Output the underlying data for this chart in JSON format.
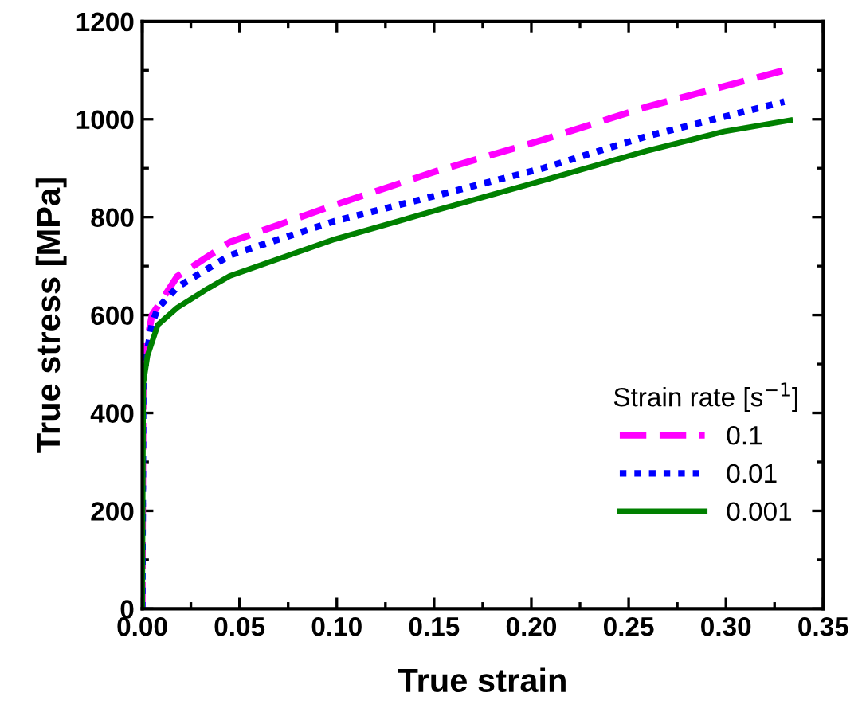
{
  "chart_data": {
    "type": "line",
    "xlabel": "True strain",
    "ylabel": "True stress [MPa]",
    "legend_title": "Strain rate [s$^{−1}$]",
    "legend": "bottom right",
    "grid": false,
    "xlim": [
      0,
      0.35
    ],
    "ylim": [
      0,
      1200
    ],
    "xticks": [
      {
        "value": 0,
        "label": "0.00"
      },
      {
        "value": 0.05,
        "label": "0.05"
      },
      {
        "value": 0.1,
        "label": "0.10"
      },
      {
        "value": 0.15,
        "label": "0.15"
      },
      {
        "value": 0.2,
        "label": "0.20"
      },
      {
        "value": 0.25,
        "label": "0.25"
      },
      {
        "value": 0.3,
        "label": "0.30"
      },
      {
        "value": 0.35,
        "label": "0.35"
      }
    ],
    "yticks": [
      0,
      200,
      400,
      600,
      800,
      1000,
      1200
    ],
    "series": [
      {
        "name": "0.1",
        "color": "#ff00ff",
        "line_style": "dashed",
        "x": [
          0,
          0.0005,
          0.0027,
          0.005,
          0.018,
          0.045,
          0.099,
          0.152,
          0.206,
          0.259,
          0.331
        ],
        "values": [
          0,
          500,
          550,
          600,
          679,
          749,
          825,
          895,
          958,
          1025,
          1101
        ]
      },
      {
        "name": "0.01",
        "color": "#0000ff",
        "line_style": "dotted",
        "x": [
          0,
          0.0005,
          0.0027,
          0.005,
          0.008,
          0.018,
          0.045,
          0.099,
          0.152,
          0.206,
          0.259,
          0.33
        ],
        "values": [
          0,
          480,
          530,
          582,
          614,
          657,
          722,
          792,
          845,
          900,
          965,
          1036
        ]
      },
      {
        "name": "0.001",
        "color": "#008000",
        "line_style": "solid",
        "x": [
          0,
          0.0005,
          0.0027,
          0.008,
          0.018,
          0.032,
          0.045,
          0.099,
          0.152,
          0.206,
          0.259,
          0.299,
          0.333
        ],
        "values": [
          0,
          460,
          517,
          580,
          615,
          650,
          680,
          755,
          815,
          875,
          935,
          975,
          998
        ]
      }
    ]
  }
}
